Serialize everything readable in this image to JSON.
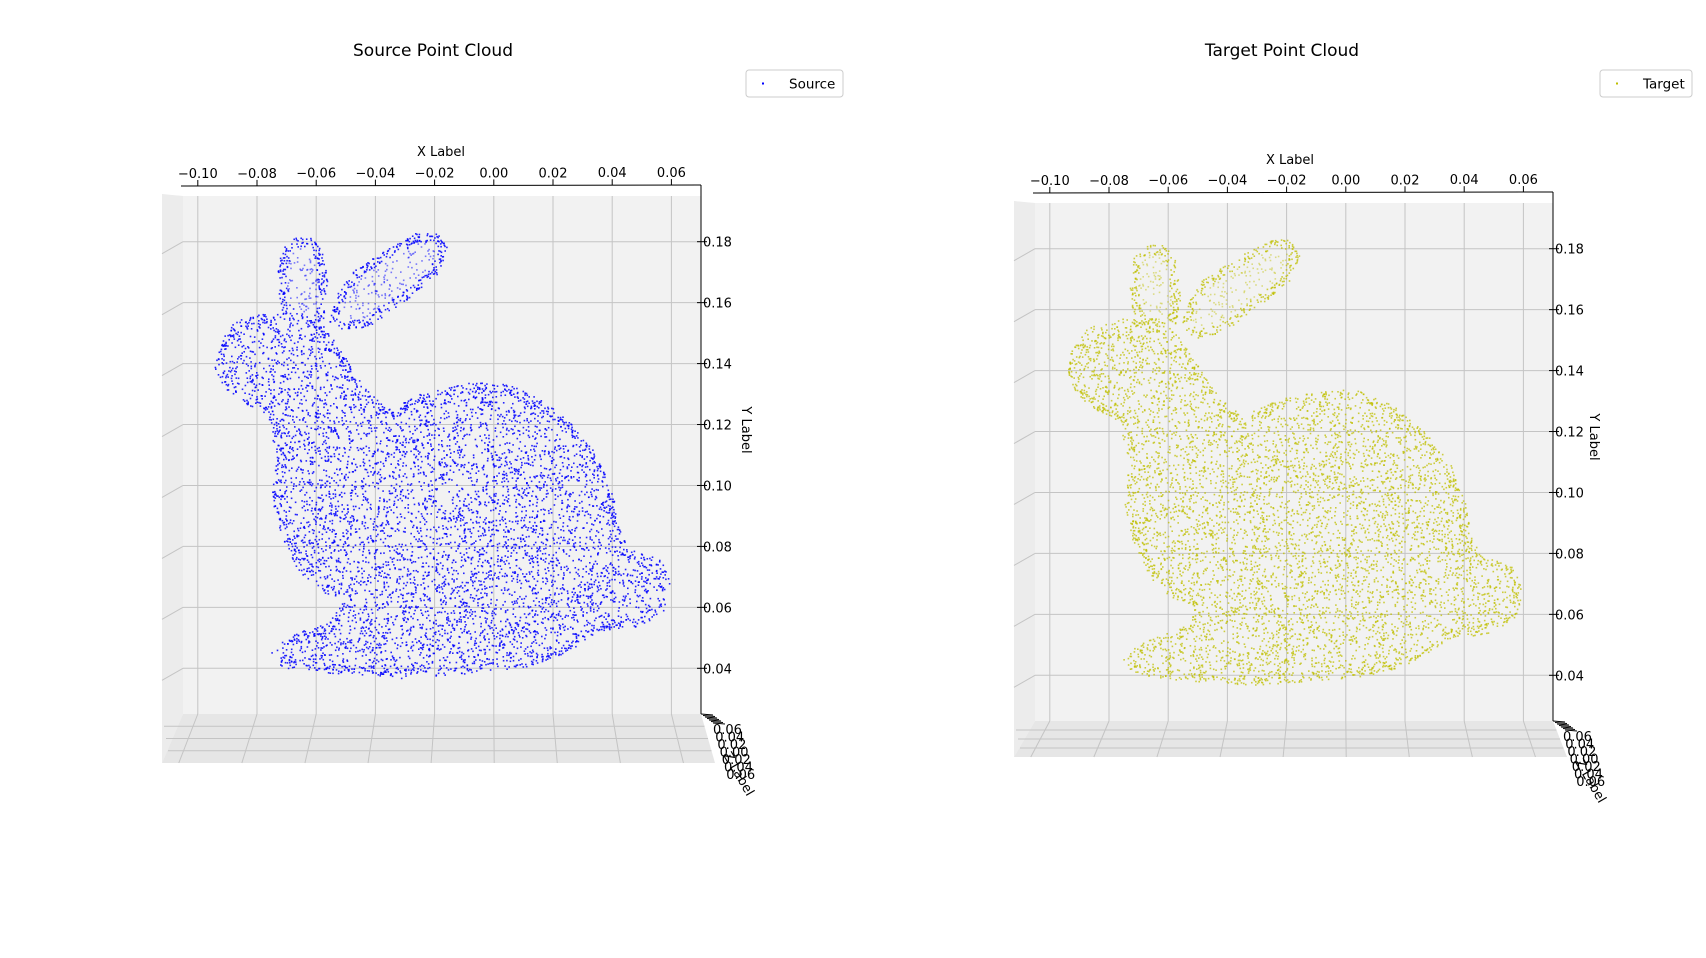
{
  "chart_data": [
    {
      "type": "scatter",
      "title": "Source Point Cloud",
      "xlabel": "X Label",
      "ylabel": "Y Label",
      "zlabel": "Z Label",
      "x_ticks": [
        -0.1,
        -0.08,
        -0.06,
        -0.04,
        -0.02,
        0.0,
        0.02,
        0.04,
        0.06
      ],
      "y_ticks": [
        0.04,
        0.06,
        0.08,
        0.1,
        0.12,
        0.14,
        0.16,
        0.18
      ],
      "z_ticks": [
        0.06,
        0.04,
        0.02,
        0.0,
        0.02,
        0.04,
        0.06
      ],
      "x_tick_labels": [
        "−0.10",
        "−0.08",
        "−0.06",
        "−0.04",
        "−0.02",
        "0.00",
        "0.02",
        "0.04",
        "0.06"
      ],
      "y_tick_labels": [
        "0.04",
        "0.06",
        "0.08",
        "0.10",
        "0.12",
        "0.14",
        "0.16",
        "0.18"
      ],
      "z_tick_labels": [
        "0.06",
        "0.04",
        "0.02",
        "0.00",
        "0.02",
        "0.04",
        "0.06"
      ],
      "xlim": [
        -0.105,
        0.07
      ],
      "ylim": [
        0.025,
        0.195
      ],
      "grid": true,
      "legend": "top-right",
      "series": [
        {
          "name": "Source",
          "color": "#0000ff",
          "points": "Stanford bunny point cloud (~35,000 points, drawn as dots)"
        }
      ]
    },
    {
      "type": "scatter",
      "title": "Target Point Cloud",
      "xlabel": "X Label",
      "ylabel": "Y Label",
      "zlabel": "Z Label",
      "x_ticks": [
        -0.1,
        -0.08,
        -0.06,
        -0.04,
        -0.02,
        0.0,
        0.02,
        0.04,
        0.06
      ],
      "y_ticks": [
        0.04,
        0.06,
        0.08,
        0.1,
        0.12,
        0.14,
        0.16,
        0.18
      ],
      "z_ticks": [
        0.06,
        0.04,
        0.02,
        0.0,
        0.02,
        0.04,
        0.06
      ],
      "x_tick_labels": [
        "−0.10",
        "−0.08",
        "−0.06",
        "−0.04",
        "−0.02",
        "0.00",
        "0.02",
        "0.04",
        "0.06"
      ],
      "y_tick_labels": [
        "0.04",
        "0.06",
        "0.08",
        "0.10",
        "0.12",
        "0.14",
        "0.16",
        "0.18"
      ],
      "z_tick_labels": [
        "0.06",
        "0.04",
        "0.02",
        "0.00",
        "0.02",
        "0.04",
        "0.06"
      ],
      "xlim": [
        -0.105,
        0.07
      ],
      "ylim": [
        0.025,
        0.195
      ],
      "grid": true,
      "legend": "top-right",
      "series": [
        {
          "name": "Target",
          "color": "#bfbf00",
          "points": "Stanford bunny point cloud (~35,000 points, drawn as dots)"
        }
      ]
    }
  ]
}
